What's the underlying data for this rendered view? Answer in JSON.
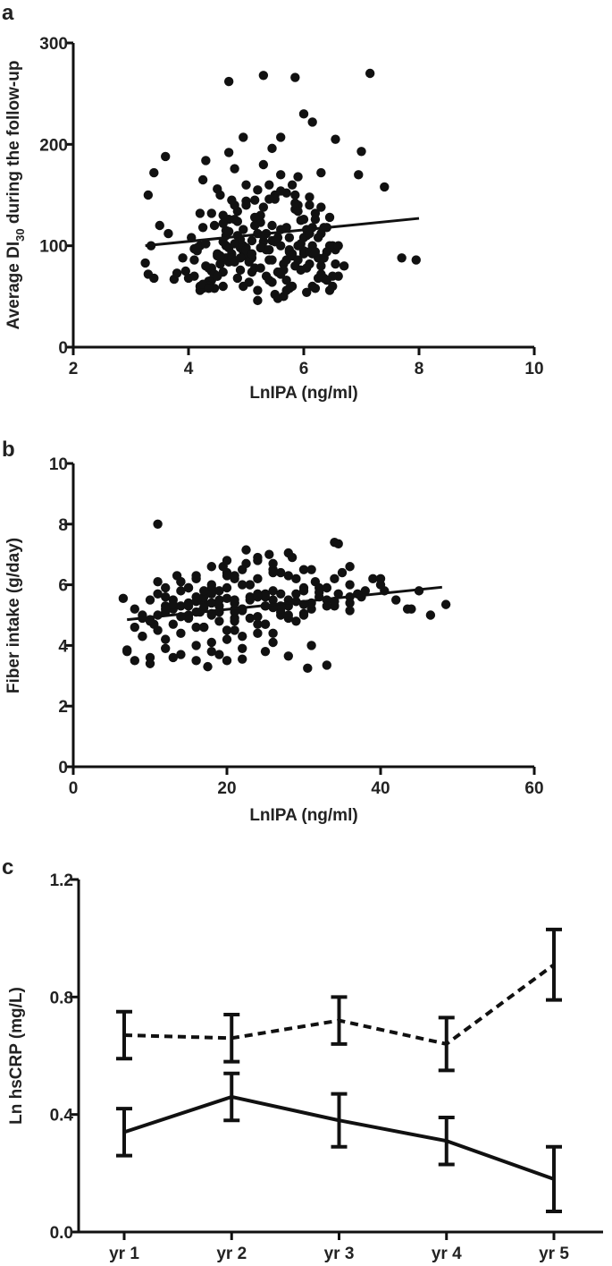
{
  "chart_data": [
    {
      "panel_label": "a",
      "type": "scatter",
      "xlabel": "LnIPA (ng/ml)",
      "ylabel": "Average DI",
      "ylabel_sub": "30",
      "ylabel_rest": " during the follow-up",
      "xlim": [
        2,
        10
      ],
      "ylim": [
        0,
        300
      ],
      "xticks": [
        2,
        4,
        6,
        8,
        10
      ],
      "yticks": [
        0,
        100,
        200,
        300
      ],
      "xtick_labels": [
        "2",
        "4",
        "6",
        "8",
        "10"
      ],
      "ytick_labels": [
        "0",
        "100",
        "200",
        "300"
      ],
      "fit_line": {
        "x": [
          3.25,
          8.0
        ],
        "y": [
          100,
          127
        ]
      },
      "points_estimated": true,
      "points_x": [
        4.7,
        5.3,
        5.85,
        7.15,
        6.0,
        6.15,
        4.95,
        7.0,
        5.6,
        3.6,
        3.4,
        4.3,
        6.55,
        5.45,
        7.4,
        3.3,
        3.5,
        3.65,
        4.25,
        6.95,
        3.25,
        3.4,
        3.35,
        3.3,
        6.5,
        7.7,
        7.95,
        3.75,
        3.9,
        4.1,
        4.25,
        4.4,
        4.55,
        4.7,
        4.85,
        5.0,
        5.15,
        5.3,
        5.45,
        5.6,
        5.75,
        5.9,
        6.05,
        6.2,
        6.35,
        6.5,
        6.7,
        3.8,
        3.95,
        4.1,
        4.2,
        4.35,
        4.5,
        4.65,
        4.8,
        4.95,
        5.1,
        5.25,
        5.4,
        5.55,
        5.7,
        5.85,
        6.0,
        6.15,
        6.3,
        6.45,
        6.6,
        4.0,
        4.15,
        4.3,
        4.45,
        4.6,
        4.75,
        4.9,
        5.05,
        5.2,
        5.35,
        5.5,
        5.65,
        5.8,
        5.95,
        6.1,
        6.25,
        6.4,
        6.55,
        4.05,
        4.2,
        4.35,
        4.5,
        4.65,
        4.8,
        4.95,
        5.1,
        5.25,
        5.4,
        5.55,
        5.7,
        5.85,
        6.0,
        6.15,
        6.3,
        6.45,
        4.1,
        4.25,
        4.4,
        4.55,
        4.7,
        4.85,
        5.0,
        5.15,
        5.3,
        5.45,
        5.6,
        5.75,
        5.9,
        6.05,
        6.2,
        6.35,
        6.5,
        4.15,
        4.3,
        4.45,
        4.6,
        4.75,
        4.9,
        5.05,
        5.2,
        5.35,
        5.5,
        5.65,
        5.8,
        5.95,
        6.1,
        6.25,
        6.4,
        4.2,
        4.35,
        4.5,
        4.65,
        4.8,
        4.95,
        5.1,
        5.25,
        5.4,
        5.55,
        5.7,
        5.85,
        6.0,
        6.15,
        6.3,
        6.45,
        4.25,
        4.4,
        4.55,
        4.7,
        4.85,
        5.0,
        5.15,
        5.3,
        5.45,
        5.6,
        5.75,
        5.9,
        6.05,
        6.2,
        6.35,
        4.3,
        4.45,
        4.6,
        4.75,
        4.9,
        5.05,
        5.2,
        5.35,
        5.5,
        5.65,
        5.8,
        5.95,
        6.1,
        6.25,
        6.4,
        6.55,
        4.35,
        4.5,
        4.65,
        4.8,
        4.95,
        5.1,
        5.25,
        5.4,
        5.55,
        5.7,
        5.85,
        6.0,
        6.15,
        6.3,
        4.4,
        4.55,
        4.7,
        4.85,
        5.0,
        5.15,
        5.3,
        5.45,
        5.6,
        5.75,
        5.9,
        6.05,
        6.2,
        6.35,
        4.6,
        4.9,
        5.2,
        5.5,
        5.8,
        6.1,
        4.5,
        5.0,
        5.5,
        5.9,
        4.8,
        5.3,
        5.7,
        4.7,
        5.4,
        6.3,
        4.2,
        4.6,
        5.0,
        5.6,
        6.1,
        6.6
      ],
      "points_y": [
        262,
        268,
        266,
        270,
        230,
        222,
        207,
        193,
        207,
        188,
        172,
        184,
        205,
        196,
        158,
        150,
        120,
        112,
        165,
        170,
        83,
        68,
        100,
        72,
        60,
        88,
        86,
        67,
        88,
        97,
        118,
        75,
        82,
        126,
        134,
        98,
        145,
        138,
        105,
        170,
        96,
        140,
        110,
        132,
        118,
        100,
        80,
        73,
        75,
        86,
        100,
        65,
        90,
        110,
        140,
        95,
        105,
        123,
        160,
        74,
        86,
        150,
        95,
        100,
        112,
        128,
        70,
        68,
        95,
        102,
        120,
        130,
        145,
        98,
        88,
        155,
        112,
        104,
        82,
        92,
        125,
        140,
        88,
        118,
        96,
        108,
        60,
        78,
        92,
        115,
        126,
        100,
        88,
        130,
        96,
        74,
        118,
        136,
        108,
        92,
        80,
        100,
        70,
        58,
        66,
        82,
        98,
        110,
        90,
        120,
        104,
        86,
        116,
        94,
        100,
        78,
        126,
        88,
        70,
        98,
        62,
        58,
        74,
        92,
        106,
        84,
        112,
        96,
        104,
        76,
        90,
        102,
        82,
        68,
        94,
        56,
        60,
        70,
        88,
        102,
        116,
        74,
        98,
        86,
        108,
        66,
        80,
        92,
        60,
        72,
        56,
        62,
        78,
        90,
        84,
        68,
        96,
        78,
        110,
        64,
        72,
        58,
        86,
        54,
        58,
        68,
        80,
        72,
        60,
        88,
        76,
        64,
        56,
        70,
        52,
        50,
        60,
        76,
        94,
        108,
        66,
        82,
        58,
        70,
        100,
        84,
        60,
        92,
        78,
        66,
        48,
        56,
        142,
        126,
        118,
        138,
        132,
        150,
        114,
        124,
        144,
        128,
        110,
        120,
        100,
        108,
        134,
        116,
        94,
        88,
        104,
        88,
        46,
        150,
        160,
        148,
        156,
        140,
        146,
        168,
        176,
        180,
        152,
        192,
        146,
        172,
        132,
        122,
        160,
        154,
        112,
        100
      ]
    },
    {
      "panel_label": "b",
      "type": "scatter",
      "xlabel": "LnIPA (ng/ml)",
      "ylabel": "Fiber intake (g/day)",
      "xlim": [
        0,
        60
      ],
      "ylim": [
        0,
        10
      ],
      "xticks": [
        0,
        20,
        40,
        60
      ],
      "yticks": [
        0,
        2,
        4,
        6,
        8,
        10
      ],
      "xtick_labels": [
        "0",
        "20",
        "40",
        "60"
      ],
      "ytick_labels": [
        "0",
        "2",
        "4",
        "6",
        "8",
        "10"
      ],
      "fit_line": {
        "x": [
          7,
          48
        ],
        "y": [
          4.85,
          5.92
        ]
      },
      "points_estimated": true,
      "points_x": [
        11,
        34,
        34.5,
        22.5,
        28,
        6.5,
        8,
        9,
        10.5,
        12,
        13.5,
        15,
        16.5,
        18,
        19.5,
        21,
        22.5,
        24,
        25.5,
        27,
        28.5,
        30,
        31.5,
        33,
        34.5,
        36,
        37.5,
        39,
        40.5,
        42,
        43.5,
        45,
        46.5,
        48.5,
        44,
        10,
        12,
        14,
        16,
        18,
        20,
        22,
        24,
        26,
        28,
        30,
        32,
        34,
        36,
        38,
        8,
        10,
        11,
        13,
        15,
        17,
        19,
        21,
        23,
        25,
        27,
        29,
        31,
        9,
        11,
        13,
        15,
        17,
        19,
        21,
        23,
        25,
        27,
        29,
        14,
        16,
        18,
        20,
        22,
        24,
        26,
        12,
        14,
        16,
        18,
        20,
        22,
        24,
        26,
        28,
        10,
        12,
        14,
        16,
        18,
        20,
        22,
        24,
        26,
        11,
        13,
        15,
        17,
        19,
        21,
        23,
        25,
        7,
        9,
        12,
        15,
        18,
        21,
        24,
        27,
        30,
        33,
        8,
        10,
        13,
        16,
        19,
        22,
        25,
        28,
        31,
        12,
        14,
        17,
        20,
        23,
        26,
        29,
        32,
        35,
        14,
        16,
        19,
        22,
        25,
        28,
        31,
        34,
        37,
        40,
        17,
        19,
        21,
        23,
        25,
        18,
        20,
        22,
        24,
        26,
        28,
        15,
        18,
        21,
        24,
        27,
        30,
        33,
        36,
        16,
        20,
        24,
        28,
        32,
        36,
        13,
        17,
        21,
        25,
        29,
        9,
        12,
        15,
        18,
        21,
        24,
        27,
        30,
        33,
        10,
        14,
        18,
        22,
        26,
        30,
        34,
        11,
        16,
        21,
        26,
        31,
        36,
        40,
        7,
        30.5,
        33,
        17.5,
        20
      ],
      "points_y": [
        8.0,
        7.4,
        7.35,
        7.15,
        7.05,
        5.55,
        5.2,
        4.9,
        4.7,
        5.6,
        6.3,
        5.9,
        5.1,
        6.0,
        6.6,
        6.2,
        6.7,
        6.8,
        7.0,
        6.4,
        6.9,
        6.5,
        6.1,
        5.9,
        5.7,
        6.0,
        5.6,
        6.2,
        5.8,
        5.5,
        5.2,
        5.8,
        5.0,
        5.35,
        5.2,
        5.5,
        5.3,
        5.8,
        5.6,
        5.4,
        5.9,
        5.2,
        5.7,
        5.5,
        5.3,
        5.9,
        5.6,
        6.2,
        5.4,
        5.8,
        4.6,
        4.8,
        5.0,
        5.2,
        4.9,
        5.4,
        5.1,
        4.8,
        5.6,
        5.3,
        5.0,
        5.7,
        5.2,
        4.3,
        4.5,
        4.7,
        5.0,
        4.6,
        5.3,
        4.9,
        5.5,
        4.7,
        5.1,
        4.8,
        6.1,
        6.3,
        5.9,
        6.4,
        6.0,
        6.2,
        5.8,
        4.2,
        4.4,
        4.6,
        4.1,
        4.5,
        4.3,
        4.7,
        4.4,
        4.9,
        3.6,
        3.9,
        3.7,
        4.0,
        3.8,
        4.2,
        3.9,
        4.4,
        4.1,
        5.7,
        5.5,
        5.9,
        5.6,
        5.8,
        5.4,
        6.0,
        5.7,
        3.85,
        4.3,
        5.1,
        5.4,
        5.7,
        5.2,
        5.6,
        5.3,
        5.0,
        5.5,
        3.5,
        3.4,
        3.6,
        3.5,
        3.7,
        3.55,
        3.8,
        3.65,
        4.0,
        5.9,
        6.1,
        5.8,
        6.3,
        6.0,
        6.5,
        6.2,
        5.9,
        6.4,
        5.3,
        5.1,
        5.5,
        5.2,
        5.6,
        5.0,
        5.4,
        5.3,
        5.7,
        6.0,
        4.6,
        4.8,
        4.5,
        4.9,
        4.7,
        6.6,
        6.8,
        6.5,
        6.9,
        6.7,
        6.3,
        4.9,
        5.0,
        5.1,
        4.95,
        5.2,
        5.05,
        5.3,
        5.15,
        5.45,
        5.55,
        5.65,
        5.5,
        5.75,
        5.6,
        5.35,
        5.25,
        5.4,
        5.3,
        5.45,
        5.0,
        5.2,
        5.3,
        5.4,
        5.5,
        5.6,
        5.7,
        5.8,
        5.9,
        4.85,
        4.95,
        5.05,
        5.15,
        5.25,
        5.35,
        5.45,
        6.1,
        6.2,
        6.3,
        6.4,
        6.5,
        6.6,
        6.2,
        3.8,
        3.25,
        3.35,
        3.3,
        3.5
      ]
    },
    {
      "panel_label": "c",
      "type": "line",
      "xlabel": "",
      "ylabel": "Ln hsCRP (mg/L)",
      "categories": [
        "yr 1",
        "yr 2",
        "yr 3",
        "yr 4",
        "yr 5"
      ],
      "ylim": [
        0.0,
        1.2
      ],
      "yticks": [
        0.0,
        0.4,
        0.8,
        1.2
      ],
      "ytick_labels": [
        "0.0",
        "0.4",
        "0.8",
        "1.2"
      ],
      "series": [
        {
          "style": "dashed",
          "values": [
            0.67,
            0.66,
            0.72,
            0.64,
            0.91
          ],
          "err_low": [
            0.59,
            0.58,
            0.64,
            0.55,
            0.79
          ],
          "err_high": [
            0.75,
            0.74,
            0.8,
            0.73,
            1.03
          ]
        },
        {
          "style": "solid",
          "values": [
            0.34,
            0.46,
            0.38,
            0.31,
            0.18
          ],
          "err_low": [
            0.26,
            0.38,
            0.29,
            0.23,
            0.07
          ],
          "err_high": [
            0.42,
            0.54,
            0.47,
            0.39,
            0.29
          ]
        }
      ]
    }
  ]
}
